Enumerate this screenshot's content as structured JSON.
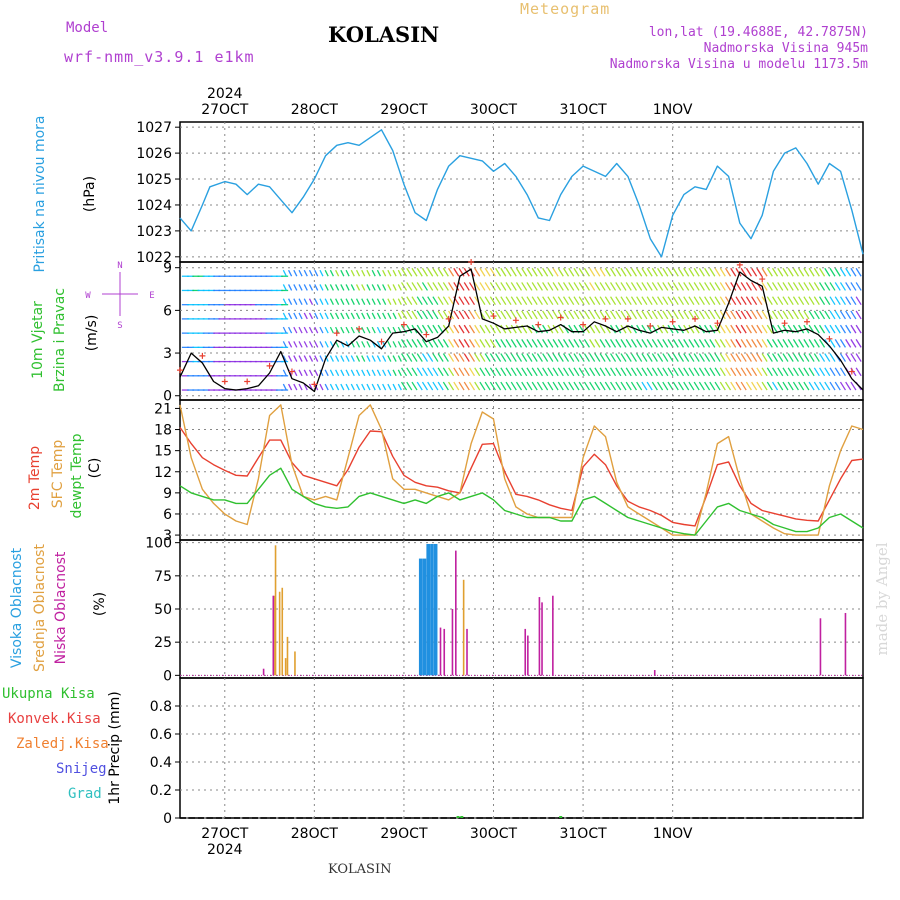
{
  "header": {
    "model_label": "Model",
    "model_name": "wrf-nmm_v3.9.1  e1km",
    "station": "KOLASIN",
    "meteogram": "Meteogram",
    "lonlat": "lon,lat (19.4688E, 42.7875N)",
    "elevation": "Nadmorska Visina 945m",
    "model_elevation": "Nadmorska Visina u modelu 1173.5m"
  },
  "footer": {
    "station": "KOLASIN",
    "watermark": "made by Angel"
  },
  "colors": {
    "pressure": "#2aa0e0",
    "temp2m": "#e84030",
    "sfc_temp": "#e0a040",
    "dewpt": "#30c030",
    "high_cloud": "#2090e0",
    "mid_cloud": "#e0a030",
    "low_cloud": "#c020a0",
    "grid": "#888888",
    "title_purple": "#b040d0",
    "meteogram_orange": "#e8c070"
  },
  "panel_labels": {
    "pressure": {
      "name": "Pritisak na nivou mora",
      "unit": "(hPa)"
    },
    "wind": {
      "line1": "10m Vjetar",
      "line2": "Brzina i Pravac",
      "unit": "(m/s)",
      "compass": "N",
      "compass_w": "W",
      "compass_e": "E",
      "compass_s": "S"
    },
    "temp": {
      "t2m": "2m Temp",
      "sfc": "SFC Temp",
      "dew": "dewpt Temp",
      "unit": "(C)"
    },
    "cloud": {
      "high": "Visoka Oblacnost",
      "mid": "Srednja Oblacnost",
      "low": "Niska Oblacnost",
      "unit": "(%)"
    },
    "precip": {
      "total": "Ukupna Kisa",
      "conv": "Konvek.Kisa",
      "frz": "Zaledj.Kisa",
      "snow": "Snijeg",
      "grad": "Grad",
      "unit": "1hr Precip (mm)"
    }
  },
  "chart_data": [
    {
      "type": "line",
      "panel": "pressure",
      "x_unit": "hours from 26 Oct 2024 12:00 UTC",
      "x_ticks": [
        "27OCT",
        "28OCT",
        "29OCT",
        "30OCT",
        "31OCT",
        "1NOV"
      ],
      "year": "2024",
      "ylim": [
        1021.8,
        1027.2
      ],
      "yticks": [
        1022,
        1023,
        1024,
        1025,
        1026,
        1027
      ],
      "series": [
        {
          "name": "Pritisak na nivou mora",
          "color": "#2aa0e0",
          "x": [
            0,
            3,
            6,
            8,
            12,
            15,
            18,
            21,
            24,
            27,
            30,
            33,
            36,
            39,
            42,
            45,
            48,
            51,
            54,
            57,
            60,
            63,
            66,
            69,
            72,
            75,
            78,
            81,
            84,
            87,
            90,
            93,
            96,
            99,
            102,
            105,
            108,
            111,
            114,
            117,
            120,
            123,
            126,
            129,
            132,
            135,
            138,
            141,
            144,
            147,
            150,
            153,
            156,
            159,
            162,
            165,
            168,
            171
          ],
          "y": [
            1023.5,
            1023.0,
            1024.0,
            1024.7,
            1024.9,
            1024.8,
            1024.4,
            1024.8,
            1024.7,
            1024.2,
            1023.7,
            1024.3,
            1025.0,
            1025.9,
            1026.3,
            1026.4,
            1026.3,
            1026.6,
            1026.9,
            1026.1,
            1024.8,
            1023.7,
            1023.4,
            1024.6,
            1025.5,
            1025.9,
            1025.8,
            1025.7,
            1025.3,
            1025.6,
            1025.1,
            1024.4,
            1023.5,
            1023.4,
            1024.4,
            1025.1,
            1025.5,
            1025.3,
            1025.1,
            1025.6,
            1025.1,
            1024.0,
            1022.7,
            1022.0,
            1023.6,
            1024.4,
            1024.7,
            1024.6,
            1025.5,
            1025.1,
            1023.3,
            1022.7,
            1023.6,
            1025.3,
            1026.0,
            1026.2,
            1025.6,
            1024.8
          ],
          "x_end": [
            174,
            177,
            180,
            183
          ],
          "y_end": [
            1025.6,
            1025.3,
            1023.8,
            1022.1
          ]
        }
      ]
    },
    {
      "type": "line",
      "panel": "wind",
      "ylim": [
        -0.3,
        9.4
      ],
      "yticks": [
        0,
        3,
        6,
        9
      ],
      "series": [
        {
          "name": "10m Vjetar speed",
          "x": [
            0,
            3,
            6,
            9,
            12,
            15,
            18,
            21,
            24,
            27,
            30,
            33,
            36,
            39,
            42,
            45,
            48,
            51,
            54,
            57,
            60,
            63,
            66,
            69,
            72,
            75,
            78,
            81,
            84,
            87,
            90,
            93,
            96,
            99,
            102,
            105,
            108,
            111,
            114,
            117,
            120,
            123,
            126,
            129,
            132,
            135,
            138,
            141,
            144,
            147,
            150,
            153,
            156,
            159,
            162,
            165,
            168,
            171,
            174,
            177,
            180,
            183
          ],
          "y": [
            1.3,
            3.0,
            2.3,
            1.0,
            0.5,
            0.4,
            0.5,
            0.7,
            1.6,
            3.1,
            1.2,
            0.9,
            0.3,
            2.6,
            3.9,
            3.5,
            4.2,
            3.9,
            3.3,
            4.4,
            4.5,
            4.7,
            3.8,
            4.1,
            4.9,
            8.4,
            8.9,
            5.4,
            5.1,
            4.7,
            4.8,
            4.9,
            4.5,
            4.6,
            5.0,
            4.5,
            4.5,
            5.2,
            4.9,
            4.5,
            4.9,
            4.6,
            4.4,
            4.8,
            4.7,
            4.6,
            4.9,
            4.5,
            4.6,
            6.5,
            8.7,
            8.1,
            7.7,
            4.4,
            4.6,
            4.5,
            4.7,
            4.3,
            3.5,
            2.5,
            1.2,
            0.4
          ]
        }
      ]
    },
    {
      "type": "line",
      "panel": "temperature",
      "ylim": [
        2.3,
        22.2
      ],
      "yticks": [
        3,
        6,
        9,
        12,
        15,
        18,
        21
      ],
      "series": [
        {
          "name": "2m Temp",
          "color": "#e84030",
          "x": [
            0,
            3,
            6,
            9,
            12,
            15,
            18,
            21,
            24,
            27,
            30,
            33,
            36,
            39,
            42,
            45,
            48,
            51,
            54,
            57,
            60,
            63,
            66,
            69,
            72,
            75,
            78,
            81,
            84,
            87,
            90,
            93,
            96,
            99,
            102,
            105,
            108,
            111,
            114,
            117,
            120,
            123,
            126,
            129,
            132,
            135,
            138,
            141,
            144,
            147,
            150,
            153,
            156,
            159,
            162,
            165,
            168,
            171,
            174,
            177,
            180,
            183
          ],
          "y": [
            18.3,
            16.0,
            14.0,
            13.0,
            12.2,
            11.5,
            11.4,
            14.0,
            16.5,
            16.5,
            13.3,
            11.5,
            11.0,
            10.5,
            10.0,
            12.3,
            15.5,
            17.8,
            17.7,
            14.2,
            11.5,
            10.5,
            10.0,
            9.8,
            9.3,
            9.0,
            12.5,
            15.9,
            16.0,
            12.0,
            8.8,
            8.5,
            8.0,
            7.3,
            6.8,
            6.5,
            12.7,
            14.5,
            13.0,
            10.0,
            7.8,
            7.0,
            6.5,
            5.8,
            4.8,
            4.5,
            4.3,
            8.5,
            13.0,
            13.4,
            10.0,
            7.5,
            6.5,
            6.1,
            5.7,
            5.3,
            5.1,
            5.0,
            8.0,
            11.0,
            13.6,
            13.8
          ]
        },
        {
          "name": "SFC Temp",
          "color": "#e0a040",
          "x": [
            0,
            3,
            6,
            9,
            12,
            15,
            18,
            21,
            24,
            27,
            30,
            33,
            36,
            39,
            42,
            45,
            48,
            51,
            54,
            57,
            60,
            63,
            66,
            69,
            72,
            75,
            78,
            81,
            84,
            87,
            90,
            93,
            96,
            99,
            102,
            105,
            108,
            111,
            114,
            117,
            120,
            123,
            126,
            129,
            132,
            135,
            138,
            141,
            144,
            147,
            150,
            153,
            156,
            159,
            162,
            165,
            168,
            171,
            174,
            177,
            180,
            183
          ],
          "y": [
            21.5,
            14.0,
            9.5,
            7.5,
            6.0,
            5.0,
            4.5,
            11.0,
            20.0,
            21.5,
            13.0,
            8.5,
            8.0,
            8.5,
            8.0,
            14.0,
            20.0,
            21.5,
            18.0,
            11.0,
            9.5,
            9.5,
            9.0,
            8.5,
            8.0,
            9.0,
            16.0,
            20.5,
            19.5,
            11.0,
            7.0,
            6.0,
            5.5,
            5.5,
            5.5,
            5.5,
            14.0,
            18.5,
            17.0,
            10.5,
            7.0,
            6.0,
            5.0,
            4.0,
            3.0,
            3.0,
            3.0,
            9.0,
            16.0,
            17.0,
            11.0,
            6.0,
            5.0,
            4.0,
            3.2,
            3.0,
            3.0,
            3.0,
            10.0,
            15.0,
            18.5,
            18.0
          ]
        },
        {
          "name": "dewpt Temp",
          "color": "#30c030",
          "x": [
            0,
            3,
            6,
            9,
            12,
            15,
            18,
            21,
            24,
            27,
            30,
            33,
            36,
            39,
            42,
            45,
            48,
            51,
            54,
            57,
            60,
            63,
            66,
            69,
            72,
            75,
            78,
            81,
            84,
            87,
            90,
            93,
            96,
            99,
            102,
            105,
            108,
            111,
            114,
            117,
            120,
            123,
            126,
            129,
            132,
            135,
            138,
            141,
            144,
            147,
            150,
            153,
            156,
            159,
            162,
            165,
            168,
            171,
            174,
            177,
            180,
            183
          ],
          "y": [
            10.0,
            9.0,
            8.5,
            8.0,
            8.0,
            7.5,
            7.5,
            9.5,
            11.5,
            12.5,
            9.5,
            8.5,
            7.5,
            7.0,
            6.8,
            7.0,
            8.5,
            9.0,
            8.5,
            8.0,
            7.5,
            8.0,
            7.5,
            8.5,
            9.0,
            8.0,
            8.5,
            9.0,
            8.0,
            6.5,
            6.0,
            5.5,
            5.5,
            5.5,
            5.0,
            5.0,
            8.0,
            8.5,
            7.5,
            6.5,
            5.5,
            5.0,
            4.5,
            4.0,
            3.5,
            3.2,
            3.0,
            5.0,
            7.0,
            7.5,
            6.5,
            6.0,
            5.5,
            4.5,
            4.0,
            3.5,
            3.5,
            4.0,
            5.5,
            6.0,
            5.0,
            4.0
          ]
        }
      ]
    },
    {
      "type": "bar",
      "panel": "cloud",
      "ylim": [
        -2,
        102
      ],
      "yticks": [
        0,
        25,
        50,
        75,
        100
      ],
      "series": [
        {
          "name": "Visoka Oblacnost",
          "color": "#2090e0",
          "bars": [
            [
              64.5,
              88
            ],
            [
              65.5,
              88
            ],
            [
              66.5,
              99
            ],
            [
              67.5,
              99
            ],
            [
              68.5,
              99
            ]
          ]
        },
        {
          "name": "Srednja Oblacnost",
          "color": "#e0a030",
          "bars": [
            [
              25.2,
              60
            ],
            [
              25.6,
              98
            ],
            [
              26.7,
              63
            ],
            [
              27.4,
              66
            ],
            [
              28.3,
              13
            ],
            [
              28.8,
              29
            ],
            [
              30.8,
              18
            ],
            [
              76.0,
              72
            ]
          ]
        },
        {
          "name": "Niska Oblacnost",
          "color": "#c020a0",
          "bars": [
            [
              22.4,
              5
            ],
            [
              25.0,
              60
            ],
            [
              69.8,
              36
            ],
            [
              70.8,
              35
            ],
            [
              73.0,
              50
            ],
            [
              73.9,
              94
            ],
            [
              76.9,
              35
            ],
            [
              92.5,
              35
            ],
            [
              93.2,
              30
            ],
            [
              96.3,
              59
            ],
            [
              97.0,
              55
            ],
            [
              99.9,
              60
            ],
            [
              127.2,
              4
            ],
            [
              171.6,
              43
            ],
            [
              178.3,
              47
            ]
          ]
        }
      ]
    },
    {
      "type": "bar",
      "panel": "precip",
      "ylim": [
        0,
        1.0
      ],
      "yticks": [
        0,
        0.2,
        0.4,
        0.6,
        0.8
      ],
      "series": [
        {
          "name": "Ukupna Kisa",
          "color": "#30c030",
          "bars": [
            [
              74.5,
              0.01
            ],
            [
              75.5,
              0.01
            ],
            [
              102.0,
              0.005
            ]
          ]
        },
        {
          "name": "Konvek.Kisa",
          "color": "#e84040",
          "bars": []
        },
        {
          "name": "Zaledj.Kisa",
          "color": "#f08030",
          "bars": []
        },
        {
          "name": "Snijeg",
          "color": "#5050e0",
          "bars": []
        },
        {
          "name": "Grad",
          "color": "#30c0c0",
          "bars": []
        }
      ]
    }
  ],
  "wind_field": {
    "description_colors": [
      "#8a2be2",
      "#1e7fff",
      "#00c0ff",
      "#00d060",
      "#a0e020",
      "#f0d040",
      "#f08030",
      "#e02020"
    ],
    "bands_by_speed": "purple/blue at low speeds, green, yellow, orange, red at high speeds"
  }
}
